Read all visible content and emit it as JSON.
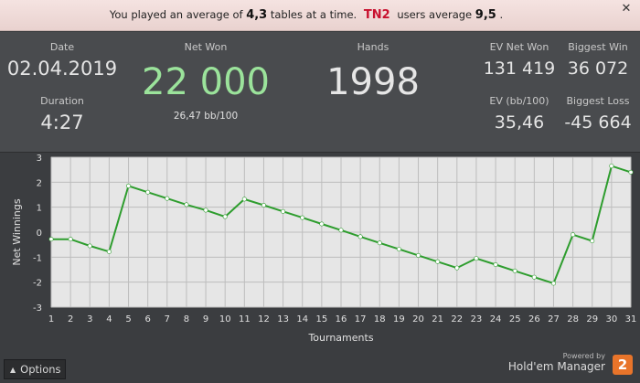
{
  "banner": {
    "prefix": "You played an average of",
    "avg_tables": "4,3",
    "mid": "tables at a time.",
    "group": "TN2",
    "suffix": "users average",
    "group_avg": "9,5",
    "end": "."
  },
  "close_label": "✕",
  "stats": {
    "date_label": "Date",
    "date": "02.04.2019",
    "duration_label": "Duration",
    "duration": "4:27",
    "net_won_label": "Net Won",
    "net_won": "22 000",
    "bb_per_100": "26,47 bb/100",
    "hands_label": "Hands",
    "hands": "1998",
    "ev_net_won_label": "EV Net Won",
    "ev_net_won": "131 419",
    "biggest_win_label": "Biggest Win",
    "biggest_win": "36 072",
    "ev_bb_label": "EV (bb/100)",
    "ev_bb": "35,46",
    "biggest_loss_label": "Biggest Loss",
    "biggest_loss": "-45 664"
  },
  "colors": {
    "net_won": "#9be39b",
    "line": "#2e9d2e",
    "marker": "#ffffff",
    "plot_bg": "#e6e6e6"
  },
  "chart_data": {
    "type": "line",
    "xlabel": "Tournaments",
    "ylabel": "Net Winnings",
    "xlim": [
      1,
      31
    ],
    "ylim": [
      -3,
      3
    ],
    "x": [
      1,
      2,
      3,
      4,
      5,
      6,
      7,
      8,
      9,
      10,
      11,
      12,
      13,
      14,
      15,
      16,
      17,
      18,
      19,
      20,
      21,
      22,
      23,
      24,
      25,
      26,
      27,
      28,
      29,
      30,
      31
    ],
    "values": [
      -0.28,
      -0.28,
      -0.55,
      -0.78,
      1.85,
      1.6,
      1.35,
      1.1,
      0.88,
      0.62,
      1.32,
      1.08,
      0.83,
      0.58,
      0.33,
      0.08,
      -0.18,
      -0.43,
      -0.68,
      -0.93,
      -1.18,
      -1.43,
      -1.05,
      -1.3,
      -1.55,
      -1.8,
      -2.05,
      -0.1,
      -0.35,
      2.65,
      2.4
    ],
    "x_ticks": [
      "1",
      "2",
      "3",
      "4",
      "5",
      "6",
      "7",
      "8",
      "9",
      "10",
      "11",
      "12",
      "13",
      "14",
      "15",
      "16",
      "17",
      "18",
      "19",
      "20",
      "21",
      "22",
      "23",
      "24",
      "25",
      "26",
      "27",
      "28",
      "29",
      "30",
      "31"
    ],
    "y_ticks": [
      "3",
      "2",
      "1",
      "0",
      "-1",
      "-2",
      "-3"
    ],
    "grid": true
  },
  "footer": {
    "options_label": "Options",
    "powered_by": "Powered by",
    "brand_name": "Hold'em Manager",
    "brand_logo": "2"
  }
}
